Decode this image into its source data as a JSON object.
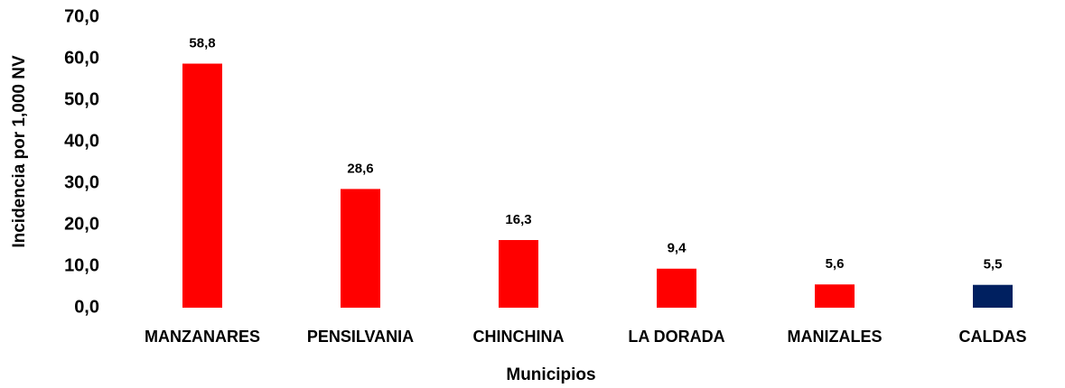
{
  "chart_data": {
    "type": "bar",
    "xlabel": "Municipios",
    "ylabel": "Incidencia por 1,000 NV",
    "categories": [
      "MANZANARES",
      "PENSILVANIA",
      "CHINCHINA",
      "LA DORADA",
      "MANIZALES",
      "CALDAS"
    ],
    "values": [
      58.8,
      28.6,
      16.3,
      9.4,
      5.6,
      5.5
    ],
    "value_labels": [
      "58,8",
      "28,6",
      "16,3",
      "9,4",
      "5,6",
      "5,5"
    ],
    "colors": [
      "#ff0000",
      "#ff0000",
      "#ff0000",
      "#ff0000",
      "#ff0000",
      "#002060"
    ],
    "ylim": [
      0,
      70
    ],
    "yticks": [
      {
        "value": 0,
        "label": "0,0"
      },
      {
        "value": 10,
        "label": "10,0"
      },
      {
        "value": 20,
        "label": "20,0"
      },
      {
        "value": 30,
        "label": "30,0"
      },
      {
        "value": 40,
        "label": "40,0"
      },
      {
        "value": 50,
        "label": "50,0"
      },
      {
        "value": 60,
        "label": "60,0"
      },
      {
        "value": 70,
        "label": "70,0"
      }
    ],
    "grid": false
  }
}
